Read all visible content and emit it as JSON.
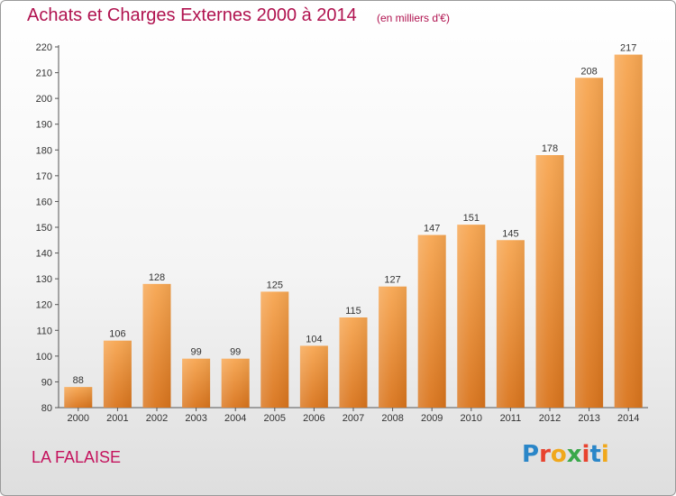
{
  "header": {
    "title": "Achats et Charges Externes 2000 à 2014",
    "subtitle": "(en milliers d'€)"
  },
  "footer": {
    "commune": "LA FALAISE",
    "logo_text": "Proxiti"
  },
  "colors": {
    "bar_top": "#f7a651",
    "bar_bottom": "#d9741c",
    "title": "#b0124f"
  },
  "chart_data": {
    "type": "bar",
    "title": "Achats et Charges Externes 2000 à 2014",
    "subtitle": "(en milliers d'€)",
    "xlabel": "",
    "ylabel": "",
    "ylim": [
      80,
      220
    ],
    "y_ticks": [
      80,
      90,
      100,
      110,
      120,
      130,
      140,
      150,
      160,
      170,
      180,
      190,
      200,
      210,
      220
    ],
    "grid": false,
    "categories": [
      "2000",
      "2001",
      "2002",
      "2003",
      "2004",
      "2005",
      "2006",
      "2007",
      "2008",
      "2009",
      "2010",
      "2011",
      "2012",
      "2013",
      "2014"
    ],
    "values": [
      88,
      106,
      128,
      99,
      99,
      125,
      104,
      115,
      127,
      147,
      151,
      145,
      178,
      208,
      217
    ]
  }
}
